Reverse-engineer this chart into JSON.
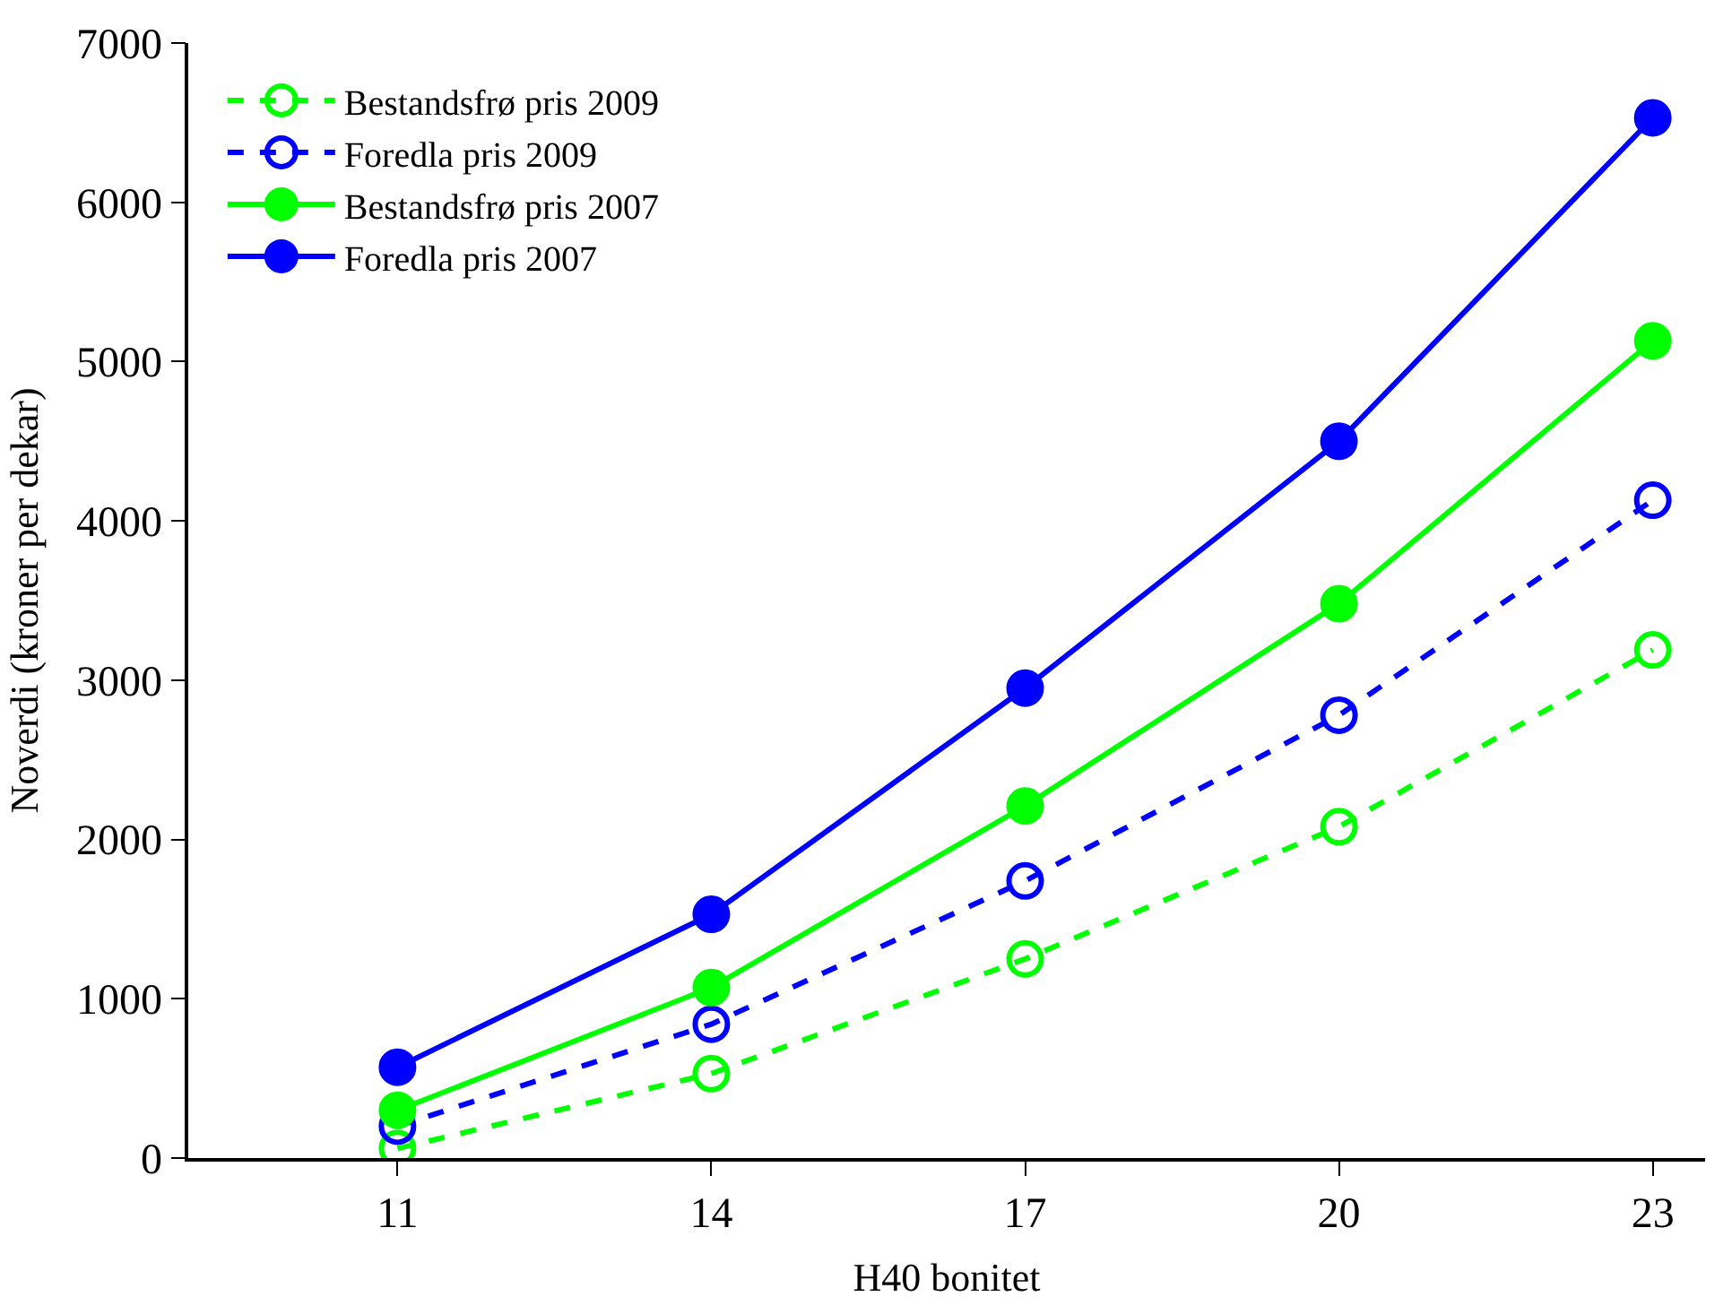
{
  "chart_data": {
    "type": "line",
    "xlabel": "H40 bonitet",
    "ylabel": "Noverdi (kroner per dekar)",
    "x": [
      11,
      14,
      17,
      20,
      23
    ],
    "xlim": [
      9,
      23.5
    ],
    "xticks": [
      11,
      14,
      17,
      20,
      23
    ],
    "ylim": [
      0,
      7000
    ],
    "yticks": [
      0,
      1000,
      2000,
      3000,
      4000,
      5000,
      6000,
      7000
    ],
    "legend": "top left",
    "marker": "circle",
    "series": [
      {
        "name": "Bestandsfrø pris 2009",
        "color": "#00ff00",
        "line_style": "dashed",
        "values": [
          60,
          530,
          1250,
          2080,
          3190
        ]
      },
      {
        "name": "Foredla pris 2009",
        "color": "#0000ff",
        "line_style": "dashed",
        "values": [
          200,
          840,
          1740,
          2780,
          4130
        ]
      },
      {
        "name": "Bestandsfrø pris 2007",
        "color": "#00ff00",
        "line_style": "solid",
        "values": [
          300,
          1070,
          2210,
          3480,
          5130
        ]
      },
      {
        "name": "Foredla pris 2007",
        "color": "#0000ff",
        "line_style": "solid",
        "values": [
          570,
          1530,
          2950,
          4500,
          6530
        ]
      }
    ]
  }
}
